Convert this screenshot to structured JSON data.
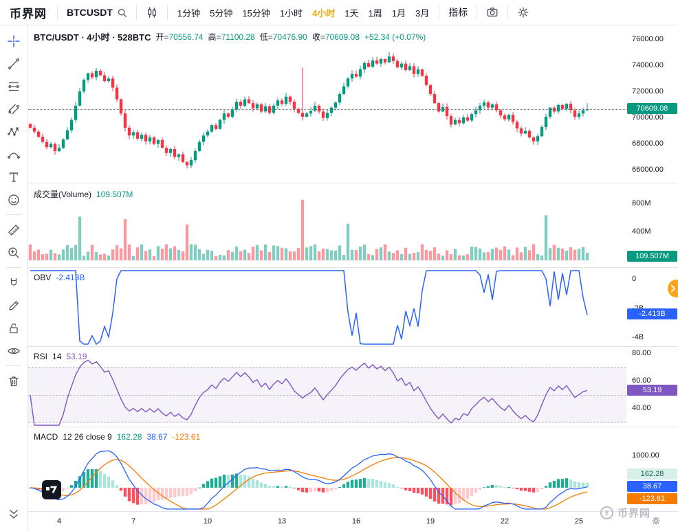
{
  "topbar": {
    "logo": "币界网",
    "symbol": "BTCUSDT",
    "timeframes": [
      "1分钟",
      "5分钟",
      "15分钟",
      "1小时",
      "4小时",
      "1天",
      "1周",
      "1月",
      "3月"
    ],
    "active_timeframe": "4小时",
    "indicators": "指标"
  },
  "price_panel": {
    "title": "BTC/USDT · 4小时 · 528BTC",
    "open_label": "开=",
    "open": "70556.74",
    "high_label": "高=",
    "high": "71100.28",
    "low_label": "低=",
    "low": "70476.90",
    "close_label": "收=",
    "close": "70609.08",
    "change": "+52.34 (+0.07%)",
    "axis_ticks": [
      "76000.00",
      "74000.00",
      "72000.00",
      "70000.00",
      "68000.00",
      "66000.00"
    ],
    "price_badge": "70609.08"
  },
  "volume_panel": {
    "title": "成交量(Volume)",
    "value": "109.507M",
    "axis_ticks": [
      "800M",
      "400M"
    ],
    "badge": "109.507M"
  },
  "obv_panel": {
    "title": "OBV",
    "value": "-2.413B",
    "axis_ticks": [
      "0",
      "-2B",
      "-4B"
    ],
    "badge": "-2.413B"
  },
  "rsi_panel": {
    "title": "RSI",
    "period": "14",
    "value": "53.19",
    "axis_ticks": [
      "80.00",
      "60.00",
      "40.00"
    ],
    "badge": "53.19"
  },
  "macd_panel": {
    "title": "MACD",
    "params": "12 26 close 9",
    "hist_value": "162.28",
    "macd_value": "38.67",
    "signal_value": "-123.61",
    "axis_ticks": [
      "1000.00"
    ],
    "hist_badge": "162.28",
    "macd_badge": "38.67",
    "signal_badge": "-123.61"
  },
  "time_axis": {
    "labels": [
      "4",
      "7",
      "10",
      "13",
      "16",
      "19",
      "22",
      "25"
    ],
    "label_slots": [
      7,
      25,
      43,
      61,
      79,
      97,
      115,
      133
    ]
  },
  "watermark": {
    "icon_text": "¥",
    "text": "币界网"
  },
  "colors": {
    "up": "#089981",
    "down": "#f23645",
    "vol_up": "rgba(8,153,129,0.5)",
    "vol_down": "rgba(242,54,69,0.5)",
    "obv": "#2962ff",
    "rsi": "#7e57c2",
    "macd": "#2962ff",
    "signal": "#f57c00",
    "accent": "#f7a600",
    "hist_up_strong": "#22ab94",
    "hist_up_weak": "#ace5dc",
    "hist_dn_strong": "#f7525f",
    "hist_dn_weak": "#fccbcd"
  },
  "chart_data": [
    {
      "type": "candlestick",
      "name": "BTC/USDT 4小时",
      "first_open": 69500,
      "ylim": [
        64900,
        77100
      ],
      "yticks": [
        76000,
        74000,
        72000,
        70000,
        68000,
        66000
      ],
      "closes": [
        69200,
        68900,
        68500,
        68100,
        67700,
        67950,
        67400,
        67650,
        68300,
        69000,
        69800,
        70900,
        72000,
        72900,
        73400,
        73100,
        73600,
        73250,
        72800,
        73000,
        72300,
        71400,
        70300,
        69200,
        68600,
        68850,
        68350,
        68650,
        68150,
        68450,
        67950,
        68250,
        67650,
        67250,
        67550,
        66950,
        67150,
        66550,
        66300,
        66700,
        67400,
        68100,
        68600,
        68900,
        69400,
        69100,
        69800,
        70300,
        70050,
        70600,
        71200,
        70900,
        71400,
        71100,
        70700,
        71000,
        70450,
        70850,
        70350,
        70900,
        71300,
        71050,
        71600,
        71200,
        70650,
        70350,
        70050,
        70300,
        70500,
        70900,
        70450,
        69950,
        70350,
        70750,
        71150,
        71800,
        72400,
        73000,
        73350,
        73150,
        73700,
        74200,
        73900,
        74400,
        74150,
        74500,
        74250,
        74700,
        74350,
        73850,
        74150,
        73650,
        73950,
        73350,
        73700,
        73200,
        72500,
        71800,
        71100,
        70450,
        70800,
        70100,
        69450,
        69800,
        69550,
        70000,
        69750,
        70250,
        70550,
        70900,
        71150,
        70750,
        71000,
        70550,
        70150,
        69850,
        70200,
        69650,
        69150,
        68750,
        68950,
        68450,
        68150,
        68550,
        69250,
        70050,
        70750,
        70450,
        70950,
        70650,
        71050,
        70550,
        70050,
        70300,
        70556.74,
        70609.08
      ],
      "wick_overrides": {
        "38": {
          "low": 66050
        },
        "66": {
          "high": 73850
        },
        "87": {
          "high": 75050
        },
        "135": {
          "high": 71100.28,
          "low": 70476.9
        }
      },
      "current": {
        "open": 70556.74,
        "high": 71100.28,
        "low": 70476.9,
        "close": 70609.08
      }
    },
    {
      "type": "bar",
      "name": "Volume",
      "yticks": [
        800000000,
        400000000
      ],
      "last": 109507000,
      "spikes": {
        "12": 620000000,
        "23": 585000000,
        "38": 510000000,
        "66": 860000000,
        "77": 520000000,
        "125": 640000000,
        "135": 109507000
      }
    },
    {
      "type": "line",
      "name": "OBV",
      "last": -2413000000,
      "yticks": [
        0,
        -2000000000,
        -4000000000
      ]
    },
    {
      "type": "line",
      "name": "RSI",
      "period": 14,
      "last": 53.19,
      "band": [
        30,
        70
      ],
      "yticks": [
        80,
        60,
        40
      ]
    },
    {
      "type": "macd",
      "name": "MACD 12 26 close 9",
      "last": {
        "hist": 162.28,
        "macd": 38.67,
        "signal": -123.61
      },
      "yticks": [
        1000,
        0
      ]
    }
  ]
}
